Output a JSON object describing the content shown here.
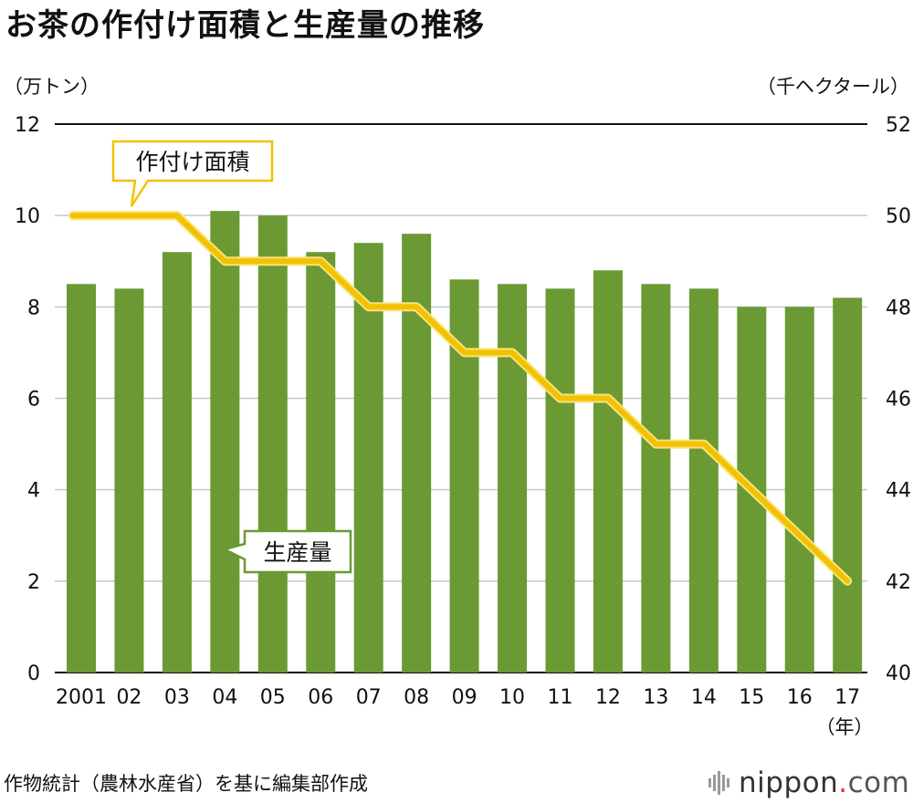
{
  "title": "お茶の作付け面積と生産量の推移",
  "source": "作物統計（農林水産省）を基に編集部作成",
  "logo": {
    "name": "nippon",
    "dot": ".",
    "tld": "com"
  },
  "colors": {
    "bar": "#6b9933",
    "line": "#f2c100",
    "line_outline": "#f8e27a",
    "grid": "#c8c8c8",
    "axis": "#111111"
  },
  "chart_data": {
    "type": "bar+line",
    "title": "お茶の作付け面積と生産量の推移",
    "categories": [
      "2001",
      "02",
      "03",
      "04",
      "05",
      "06",
      "07",
      "08",
      "09",
      "10",
      "11",
      "12",
      "13",
      "14",
      "15",
      "16",
      "17"
    ],
    "x_unit": "（年）",
    "left_axis": {
      "unit": "（万トン）",
      "min": 0,
      "max": 12,
      "ticks": [
        0,
        2,
        4,
        6,
        8,
        10,
        12
      ]
    },
    "right_axis": {
      "unit": "（千ヘクタール）",
      "min": 40,
      "max": 52,
      "ticks": [
        40,
        42,
        44,
        46,
        48,
        50,
        52
      ]
    },
    "series": [
      {
        "name": "生産量",
        "type": "bar",
        "axis": "left",
        "values": [
          8.5,
          8.4,
          9.2,
          10.1,
          10.0,
          9.2,
          9.4,
          9.6,
          8.6,
          8.5,
          8.4,
          8.8,
          8.5,
          8.4,
          8.0,
          8.0,
          8.2
        ]
      },
      {
        "name": "作付け面積",
        "type": "line",
        "axis": "right",
        "values": [
          50,
          50,
          50,
          49,
          49,
          49,
          48,
          48,
          47,
          47,
          46,
          46,
          45,
          45,
          44,
          43,
          42
        ]
      }
    ],
    "annotations": [
      "作付け面積",
      "生産量"
    ]
  }
}
